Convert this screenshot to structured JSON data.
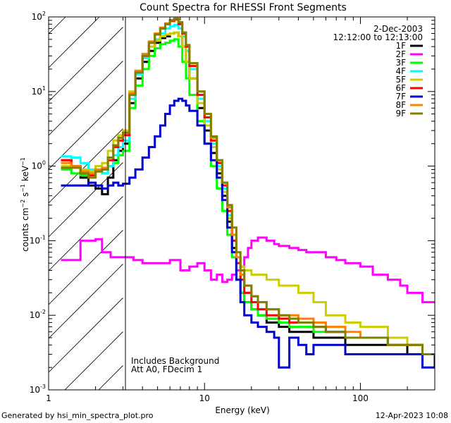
{
  "chart_data": {
    "type": "line",
    "title": "Count Spectra for RHESSI Front Segments",
    "xlabel": "Energy (keV)",
    "ylabel": "counts cm^-2 s^-1 keV^-1",
    "xlim": [
      1,
      300
    ],
    "ylim": [
      0.001,
      100
    ],
    "xscale": "log",
    "yscale": "log",
    "x_ticks": [
      1,
      10,
      100
    ],
    "x_tick_labels": [
      "1",
      "10",
      "100"
    ],
    "y_ticks": [
      0.001,
      0.01,
      0.1,
      1,
      10,
      100
    ],
    "y_tick_base": "10",
    "y_tick_exps": [
      "-3",
      "-2",
      "-1",
      "0",
      "1",
      "2"
    ],
    "date": "2-Dec-2003",
    "time_range": "12:12:00 to 12:13:00",
    "shaded_region": [
      1,
      3
    ],
    "notes": [
      "Includes Background",
      "Att A0, FDecim 1"
    ],
    "legend_position": "top-right",
    "series": [
      {
        "name": "1F",
        "color": "#000000",
        "x": [
          1.2,
          1.4,
          1.6,
          1.8,
          2.0,
          2.2,
          2.4,
          2.6,
          2.8,
          3.0,
          3.3,
          3.6,
          4.0,
          4.4,
          4.8,
          5.2,
          5.6,
          6.0,
          6.4,
          6.8,
          7.2,
          7.6,
          8.0,
          9.0,
          10.0,
          11.0,
          12.0,
          13.0,
          14.0,
          15.0,
          16.0,
          17.0,
          18.0,
          20.0,
          22.0,
          25.0,
          30.0,
          35.0,
          40.0,
          50.0,
          60.0,
          80.0,
          100.0,
          150.0,
          200.0,
          250.0,
          300.0
        ],
        "y": [
          1.2,
          1.0,
          0.7,
          0.55,
          0.5,
          0.42,
          0.7,
          1.2,
          1.6,
          2.0,
          7.0,
          15.0,
          25.0,
          35.0,
          45.0,
          52.0,
          55.0,
          60.0,
          62.0,
          55.0,
          40.0,
          25.0,
          15.0,
          6.0,
          3.0,
          1.5,
          0.8,
          0.4,
          0.18,
          0.08,
          0.04,
          0.02,
          0.015,
          0.012,
          0.01,
          0.008,
          0.007,
          0.006,
          0.006,
          0.005,
          0.005,
          0.004,
          0.004,
          0.004,
          0.003,
          0.003,
          0.002
        ]
      },
      {
        "name": "2F",
        "color": "#ff00ff",
        "x": [
          1.2,
          1.4,
          1.6,
          1.8,
          2.0,
          2.2,
          2.5,
          3.0,
          3.5,
          4.0,
          5.0,
          6.0,
          7.0,
          8.0,
          9.0,
          10.0,
          11.0,
          12.0,
          13.0,
          14.0,
          15.0,
          16.0,
          17.0,
          18.0,
          19.0,
          20.0,
          22.0,
          25.0,
          28.0,
          30.0,
          35.0,
          40.0,
          45.0,
          50.0,
          60.0,
          70.0,
          80.0,
          100.0,
          120.0,
          150.0,
          180.0,
          200.0,
          250.0,
          300.0
        ],
        "y": [
          0.055,
          0.055,
          0.1,
          0.1,
          0.105,
          0.07,
          0.06,
          0.06,
          0.055,
          0.05,
          0.05,
          0.055,
          0.04,
          0.045,
          0.05,
          0.04,
          0.03,
          0.035,
          0.028,
          0.03,
          0.035,
          0.04,
          0.045,
          0.06,
          0.08,
          0.1,
          0.11,
          0.1,
          0.09,
          0.085,
          0.08,
          0.075,
          0.07,
          0.07,
          0.06,
          0.055,
          0.05,
          0.045,
          0.035,
          0.03,
          0.025,
          0.02,
          0.015,
          0.015
        ]
      },
      {
        "name": "3F",
        "color": "#00ff00",
        "x": [
          1.2,
          1.4,
          1.6,
          1.8,
          2.0,
          2.2,
          2.4,
          2.6,
          2.8,
          3.0,
          3.3,
          3.6,
          4.0,
          4.4,
          4.8,
          5.2,
          5.6,
          6.0,
          6.4,
          6.8,
          7.2,
          7.6,
          8.0,
          9.0,
          10.0,
          11.0,
          12.0,
          13.0,
          14.0,
          15.0,
          16.0,
          17.0,
          18.0,
          20.0,
          22.0,
          25.0,
          30.0,
          35.0,
          40.0,
          50.0,
          60.0,
          80.0,
          100.0,
          150.0,
          200.0,
          250.0,
          300.0
        ],
        "y": [
          0.9,
          0.8,
          0.75,
          0.7,
          0.9,
          0.8,
          1.0,
          1.1,
          1.4,
          1.6,
          6.0,
          12.0,
          20.0,
          30.0,
          38.0,
          43.0,
          45.0,
          48.0,
          50.0,
          40.0,
          25.0,
          15.0,
          9.0,
          4.0,
          2.0,
          1.0,
          0.5,
          0.25,
          0.12,
          0.06,
          0.03,
          0.02,
          0.015,
          0.012,
          0.01,
          0.009,
          0.008,
          0.007,
          0.007,
          0.006,
          0.006,
          0.005,
          0.005,
          0.004,
          0.004,
          0.003,
          0.003
        ]
      },
      {
        "name": "4F",
        "color": "#00ffff",
        "x": [
          1.2,
          1.4,
          1.6,
          1.8,
          2.0,
          2.2,
          2.4,
          2.6,
          2.8,
          3.0,
          3.3,
          3.6,
          4.0,
          4.4,
          4.8,
          5.2,
          5.6,
          6.0,
          6.4,
          6.8,
          7.2,
          7.6,
          8.0,
          9.0,
          10.0,
          11.0,
          12.0,
          13.0,
          14.0,
          15.0,
          16.0,
          17.0,
          18.0,
          20.0,
          22.0,
          25.0,
          30.0,
          35.0,
          40.0,
          50.0,
          60.0,
          80.0,
          100.0,
          150.0,
          200.0,
          250.0,
          300.0
        ],
        "y": [
          1.35,
          1.3,
          1.1,
          0.9,
          0.85,
          0.8,
          1.0,
          1.4,
          1.8,
          2.2,
          8.0,
          17.0,
          28.0,
          40.0,
          50.0,
          60.0,
          70.0,
          75.0,
          78.0,
          70.0,
          55.0,
          35.0,
          20.0,
          8.0,
          4.0,
          2.0,
          1.0,
          0.5,
          0.22,
          0.1,
          0.05,
          0.03,
          0.02,
          0.015,
          0.012,
          0.01,
          0.009,
          0.008,
          0.008,
          0.007,
          0.006,
          0.005,
          0.005,
          0.004,
          0.004,
          0.003,
          0.003
        ]
      },
      {
        "name": "5F",
        "color": "#cccc00",
        "x": [
          1.2,
          1.4,
          1.6,
          1.8,
          2.0,
          2.2,
          2.4,
          2.6,
          2.8,
          3.0,
          3.3,
          3.6,
          4.0,
          4.4,
          4.8,
          5.2,
          5.6,
          6.0,
          6.4,
          6.8,
          7.2,
          7.6,
          8.0,
          9.0,
          10.0,
          11.0,
          12.0,
          13.0,
          14.0,
          15.0,
          16.0,
          17.0,
          18.0,
          20.0,
          22.0,
          25.0,
          28.0,
          30.0,
          35.0,
          40.0,
          50.0,
          60.0,
          80.0,
          100.0,
          150.0,
          200.0,
          250.0,
          300.0
        ],
        "y": [
          1.0,
          1.0,
          0.9,
          0.85,
          1.0,
          1.1,
          1.6,
          2.2,
          2.6,
          3.0,
          10.0,
          18.0,
          30.0,
          40.0,
          48.0,
          55.0,
          58.0,
          60.0,
          62.0,
          55.0,
          40.0,
          25.0,
          15.0,
          7.0,
          3.5,
          1.8,
          0.9,
          0.45,
          0.2,
          0.1,
          0.06,
          0.045,
          0.04,
          0.035,
          0.035,
          0.03,
          0.03,
          0.025,
          0.025,
          0.02,
          0.015,
          0.01,
          0.008,
          0.007,
          0.005,
          0.004,
          0.003,
          0.003
        ]
      },
      {
        "name": "6F",
        "color": "#ff0000",
        "x": [
          1.2,
          1.4,
          1.6,
          1.8,
          2.0,
          2.2,
          2.4,
          2.6,
          2.8,
          3.0,
          3.3,
          3.6,
          4.0,
          4.4,
          4.8,
          5.2,
          5.6,
          6.0,
          6.4,
          6.8,
          7.2,
          7.6,
          8.0,
          9.0,
          10.0,
          11.0,
          12.0,
          13.0,
          14.0,
          15.0,
          16.0,
          17.0,
          18.0,
          20.0,
          22.0,
          25.0,
          30.0,
          35.0,
          40.0,
          50.0,
          60.0,
          80.0,
          100.0,
          150.0,
          200.0,
          250.0,
          300.0
        ],
        "y": [
          1.2,
          1.0,
          0.8,
          0.75,
          0.85,
          0.9,
          1.2,
          1.8,
          2.2,
          2.6,
          9.0,
          18.0,
          30.0,
          45.0,
          58.0,
          70.0,
          80.0,
          88.0,
          92.0,
          80.0,
          60.0,
          40.0,
          22.0,
          9.0,
          4.5,
          2.2,
          1.1,
          0.55,
          0.25,
          0.1,
          0.05,
          0.03,
          0.02,
          0.015,
          0.012,
          0.01,
          0.009,
          0.008,
          0.008,
          0.007,
          0.006,
          0.005,
          0.005,
          0.004,
          0.004,
          0.003,
          0.003
        ]
      },
      {
        "name": "7F",
        "color": "#0000cc",
        "x": [
          1.2,
          1.4,
          1.6,
          1.8,
          2.0,
          2.2,
          2.4,
          2.6,
          2.8,
          3.0,
          3.3,
          3.6,
          4.0,
          4.4,
          4.8,
          5.2,
          5.6,
          6.0,
          6.4,
          6.8,
          7.2,
          7.6,
          8.0,
          9.0,
          10.0,
          11.0,
          12.0,
          13.0,
          14.0,
          15.0,
          16.0,
          17.0,
          18.0,
          20.0,
          22.0,
          25.0,
          28.0,
          30.0,
          35.0,
          40.0,
          45.0,
          50.0,
          60.0,
          80.0,
          100.0,
          150.0,
          200.0,
          250.0,
          300.0
        ],
        "y": [
          0.55,
          0.55,
          0.55,
          0.6,
          0.55,
          0.5,
          0.55,
          0.6,
          0.55,
          0.58,
          0.7,
          0.9,
          1.3,
          1.8,
          2.5,
          3.5,
          5.0,
          6.5,
          7.5,
          8.0,
          7.5,
          6.5,
          5.5,
          3.5,
          2.0,
          1.2,
          0.7,
          0.35,
          0.15,
          0.07,
          0.03,
          0.015,
          0.01,
          0.008,
          0.007,
          0.006,
          0.005,
          0.002,
          0.005,
          0.004,
          0.003,
          0.004,
          0.004,
          0.003,
          0.003,
          0.003,
          0.003,
          0.002,
          0.002
        ]
      },
      {
        "name": "8F",
        "color": "#ff8000",
        "x": [
          1.2,
          1.4,
          1.6,
          1.8,
          2.0,
          2.2,
          2.4,
          2.6,
          2.8,
          3.0,
          3.3,
          3.6,
          4.0,
          4.4,
          4.8,
          5.2,
          5.6,
          6.0,
          6.4,
          6.8,
          7.2,
          7.6,
          8.0,
          9.0,
          10.0,
          11.0,
          12.0,
          13.0,
          14.0,
          15.0,
          16.0,
          17.0,
          18.0,
          20.0,
          22.0,
          25.0,
          30.0,
          35.0,
          40.0,
          50.0,
          60.0,
          80.0,
          100.0,
          150.0,
          200.0,
          250.0,
          300.0
        ],
        "y": [
          1.1,
          1.0,
          0.85,
          0.8,
          0.9,
          0.95,
          1.3,
          1.9,
          2.4,
          2.8,
          9.5,
          19.0,
          32.0,
          47.0,
          60.0,
          72.0,
          82.0,
          90.0,
          95.0,
          85.0,
          62.0,
          42.0,
          24.0,
          10.0,
          5.0,
          2.4,
          1.2,
          0.6,
          0.28,
          0.12,
          0.06,
          0.035,
          0.025,
          0.018,
          0.015,
          0.012,
          0.01,
          0.01,
          0.009,
          0.008,
          0.007,
          0.006,
          0.005,
          0.004,
          0.004,
          0.003,
          0.003
        ]
      },
      {
        "name": "9F",
        "color": "#808000",
        "x": [
          1.2,
          1.4,
          1.6,
          1.8,
          2.0,
          2.2,
          2.4,
          2.6,
          2.8,
          3.0,
          3.3,
          3.6,
          4.0,
          4.4,
          4.8,
          5.2,
          5.6,
          6.0,
          6.4,
          6.8,
          7.2,
          7.6,
          8.0,
          9.0,
          10.0,
          11.0,
          12.0,
          13.0,
          14.0,
          15.0,
          16.0,
          17.0,
          18.0,
          20.0,
          22.0,
          25.0,
          30.0,
          35.0,
          40.0,
          50.0,
          60.0,
          80.0,
          100.0,
          150.0,
          200.0,
          250.0,
          300.0
        ],
        "y": [
          0.95,
          0.95,
          0.8,
          0.7,
          0.85,
          0.9,
          1.3,
          1.9,
          2.4,
          2.8,
          9.0,
          18.0,
          30.0,
          45.0,
          58.0,
          70.0,
          80.0,
          90.0,
          95.0,
          85.0,
          62.0,
          42.0,
          24.0,
          10.0,
          5.0,
          2.5,
          1.2,
          0.6,
          0.3,
          0.15,
          0.07,
          0.04,
          0.025,
          0.018,
          0.015,
          0.012,
          0.01,
          0.009,
          0.008,
          0.007,
          0.006,
          0.005,
          0.005,
          0.004,
          0.004,
          0.003,
          0.003
        ]
      }
    ]
  },
  "footer": {
    "generated_by": "Generated by hsi_min_spectra_plot.pro",
    "timestamp": "12-Apr-2023 10:08"
  }
}
